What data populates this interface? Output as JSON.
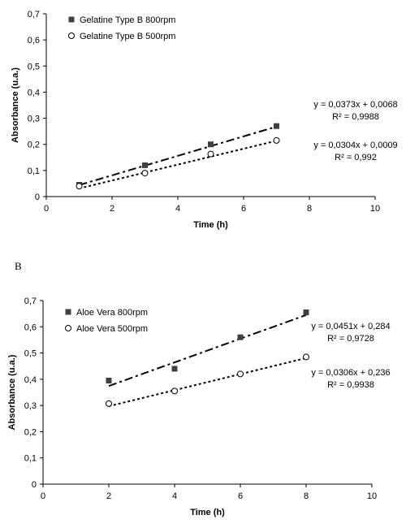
{
  "colors": {
    "ink": "#000000",
    "marker_fill": "#404040",
    "background": "#ffffff"
  },
  "chart_data": [
    {
      "type": "scatter",
      "panel_label": "",
      "xlabel": "Time (h)",
      "ylabel": "Absorbance (u.a.)",
      "xlim": [
        0,
        10
      ],
      "ylim": [
        0,
        0.7
      ],
      "x_ticks": [
        "0",
        "2",
        "4",
        "6",
        "8",
        "10"
      ],
      "y_ticks": [
        "0",
        "0,1",
        "0,2",
        "0,3",
        "0,4",
        "0,5",
        "0,6",
        "0,7"
      ],
      "grid": false,
      "legend_position": "top-left",
      "series": [
        {
          "name": "Gelatine Type B 800rpm",
          "marker": "filled-square",
          "trendline": "dash-dot",
          "x": [
            1,
            3,
            5,
            7
          ],
          "y": [
            0.045,
            0.12,
            0.2,
            0.27
          ],
          "fit": {
            "slope": 0.0373,
            "intercept": 0.0068
          },
          "equation": "y = 0,0373x + 0,0068",
          "r2": "R² = 0,9988"
        },
        {
          "name": "Gelatine Type B 500rpm",
          "marker": "open-circle",
          "trendline": "dotted",
          "x": [
            1,
            3,
            5,
            7
          ],
          "y": [
            0.04,
            0.09,
            0.163,
            0.215
          ],
          "fit": {
            "slope": 0.0304,
            "intercept": 0.0009
          },
          "equation": "y = 0,0304x + 0,0009",
          "r2": "R² = 0,992"
        }
      ]
    },
    {
      "type": "scatter",
      "panel_label": "B",
      "xlabel": "Time (h)",
      "ylabel": "Absorbance (u.a.)",
      "xlim": [
        0,
        10
      ],
      "ylim": [
        0,
        0.7
      ],
      "x_ticks": [
        "0",
        "2",
        "4",
        "6",
        "8",
        "10"
      ],
      "y_ticks": [
        "0",
        "0,1",
        "0,2",
        "0,3",
        "0,4",
        "0,5",
        "0,6",
        "0,7"
      ],
      "grid": false,
      "legend_position": "top-left",
      "series": [
        {
          "name": "Aloe Vera 800rpm",
          "marker": "filled-square",
          "trendline": "dash-dot",
          "x": [
            2,
            4,
            6,
            8
          ],
          "y": [
            0.395,
            0.44,
            0.56,
            0.655
          ],
          "fit": {
            "slope": 0.0451,
            "intercept": 0.284
          },
          "equation": "y = 0,0451x + 0,284",
          "r2": "R² = 0,9728"
        },
        {
          "name": "Aloe Vera 500rpm",
          "marker": "open-circle",
          "trendline": "dotted",
          "x": [
            2,
            4,
            6,
            8
          ],
          "y": [
            0.307,
            0.355,
            0.42,
            0.485
          ],
          "fit": {
            "slope": 0.0306,
            "intercept": 0.236
          },
          "equation": "y = 0,0306x + 0,236",
          "r2": "R² = 0,9938"
        }
      ]
    }
  ]
}
